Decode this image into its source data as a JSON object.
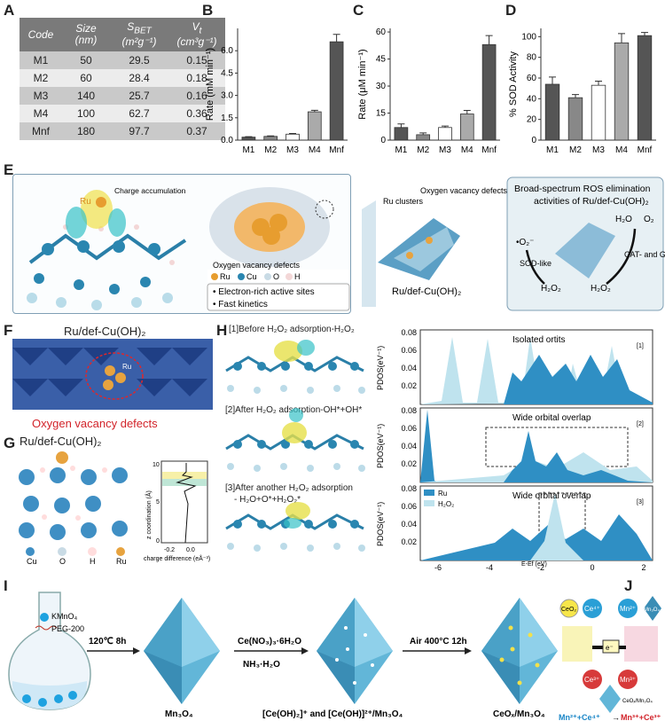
{
  "panels": {
    "A": "A",
    "B": "B",
    "C": "C",
    "D": "D",
    "E": "E",
    "F": "F",
    "G": "G",
    "H": "H",
    "I": "I",
    "J": "J"
  },
  "tableA": {
    "headers": [
      "Code",
      "Size",
      "(nm)",
      "S",
      "BET",
      "(m²g⁻¹)",
      "V",
      "t",
      "(cm³g⁻¹)"
    ],
    "rows": [
      [
        "M1",
        "50",
        "29.5",
        "0.15"
      ],
      [
        "M2",
        "60",
        "28.4",
        "0.18"
      ],
      [
        "M3",
        "140",
        "25.7",
        "0.16"
      ],
      [
        "M4",
        "100",
        "62.7",
        "0.36"
      ],
      [
        "Mnf",
        "180",
        "97.7",
        "0.37"
      ]
    ]
  },
  "chart_data": [
    {
      "type": "bar",
      "id": "B",
      "categories": [
        "M1",
        "M2",
        "M3",
        "M4",
        "Mnf"
      ],
      "values": [
        0.2,
        0.25,
        0.4,
        1.9,
        6.6
      ],
      "errors": [
        0.03,
        0.03,
        0.05,
        0.1,
        0.5
      ],
      "ylabel": "Rate (mM min⁻¹)",
      "ylim": [
        0,
        7.5
      ],
      "yticks": [
        "0.0",
        "1.5",
        "3.0",
        "4.5",
        "6.0"
      ],
      "yticks_v": [
        0,
        1.5,
        3,
        4.5,
        6
      ],
      "colors": [
        "#555",
        "#888",
        "#fff",
        "#aaa",
        "#555"
      ]
    },
    {
      "type": "bar",
      "id": "C",
      "categories": [
        "M1",
        "M2",
        "M3",
        "M4",
        "Mnf"
      ],
      "values": [
        7,
        3,
        7,
        14.5,
        53
      ],
      "errors": [
        2,
        1,
        0.8,
        2,
        5
      ],
      "ylabel": "Rate (μM min⁻¹)",
      "ylim": [
        0,
        62
      ],
      "yticks": [
        "0",
        "15",
        "30",
        "45",
        "60"
      ],
      "yticks_v": [
        0,
        15,
        30,
        45,
        60
      ],
      "colors": [
        "#555",
        "#888",
        "#fff",
        "#aaa",
        "#555"
      ]
    },
    {
      "type": "bar",
      "id": "D",
      "categories": [
        "M1",
        "M2",
        "M3",
        "M4",
        "Mnf"
      ],
      "values": [
        54,
        41,
        53,
        94,
        101
      ],
      "errors": [
        7,
        3,
        4,
        9,
        3
      ],
      "ylabel": "% SOD Activity",
      "ylim": [
        0,
        108
      ],
      "yticks": [
        "0",
        "20",
        "40",
        "60",
        "80",
        "100"
      ],
      "yticks_v": [
        0,
        20,
        40,
        60,
        80,
        100
      ],
      "colors": [
        "#555",
        "#888",
        "#fff",
        "#aaa",
        "#555"
      ]
    }
  ],
  "E": {
    "ru": "Ru",
    "charge": "Charge accumulation",
    "oxyvac": "Oxygen vacancy defects",
    "legend": [
      "Ru",
      "Cu",
      "O",
      "H"
    ],
    "bullets": [
      "• Electron-rich active sites",
      "• Fast kinetics"
    ],
    "ruclusters": "Ru clusters",
    "oxyvac2": "Oxygen vacancy defects",
    "product": "Ru/def-Cu(OH)₂",
    "ros_title": "Broad-spectrum ROS elimination activities of Ru/def-Cu(OH)₂",
    "o2m": "•O₂⁻",
    "h2o2a": "H₂O₂",
    "h2o2b": "H₂O₂",
    "h2o": "H₂O",
    "o2": "O₂",
    "sod": "SOD-like",
    "cat": "CAT- and GPx-like"
  },
  "F": {
    "title": "Ru/def-Cu(OH)₂",
    "ru": "Ru",
    "caption": "Oxygen vacancy defects"
  },
  "G": {
    "title": "Ru/def-Cu(OH)₂",
    "legend": [
      "Cu",
      "O",
      "H",
      "Ru"
    ],
    "zlabel": "z coordination (Å)",
    "xlabel": "charge difference (eÅ⁻³)",
    "yt": [
      "0",
      "5",
      "10"
    ],
    "xt": [
      "-0.2",
      "0.0"
    ]
  },
  "H": {
    "labels": [
      "[1]Before H₂O₂ adsorption-H₂O₂",
      "[2]After H₂O₂ adsorption-OH*+OH*",
      "[3]After another H₂O₂ adsorption",
      "- H₂O+O*+H₂O₂*"
    ],
    "plot_titles": [
      "Isolated ortits",
      "Wide orbital overlap",
      "Wide orbital overlap"
    ],
    "tags": [
      "[1]",
      "[2]",
      "[3]"
    ],
    "ylabel": "PDOS(eV⁻¹)",
    "yt": [
      "0.08",
      "0.06",
      "0.04",
      "0.02"
    ],
    "xt": [
      "-6",
      "-4",
      "-2",
      "0",
      "2"
    ],
    "xlabel": "E-Ef (eV)",
    "legend": [
      "Ru",
      "H₂O₂"
    ]
  },
  "I": {
    "kmno4": "KMnO₄",
    "peg": "PEG-200",
    "step1": "120℃ 8h",
    "reag1": "Ce(NO₃)₃·6H₂O",
    "reag2": "NH₃·H₂O",
    "step3": "Air 400°C 12h",
    "lab1": "Mn₃O₄",
    "lab2": "[Ce(OH)₂]⁺ and [Ce(OH)]²⁺/Mn₃O₄",
    "lab3": "CeOₓ/Mn₃O₄"
  },
  "J": {
    "ceo2": "CeO₂",
    "ce4": "Ce⁴⁺",
    "mn2": "Mn²⁺",
    "mn3o4": "Mn₃O₄",
    "e": "e⁻",
    "ce3": "Ce³⁺",
    "mn3": "Mn³⁺",
    "ceomn": "CeOₓ/Mn₃O₄",
    "eq": [
      "Mn²⁺+Ce⁴⁺",
      "→",
      "Mn³⁺+Ce³⁺"
    ],
    "eq_colors": {
      "blue": "#1a86c7",
      "red": "#d2232a"
    }
  }
}
